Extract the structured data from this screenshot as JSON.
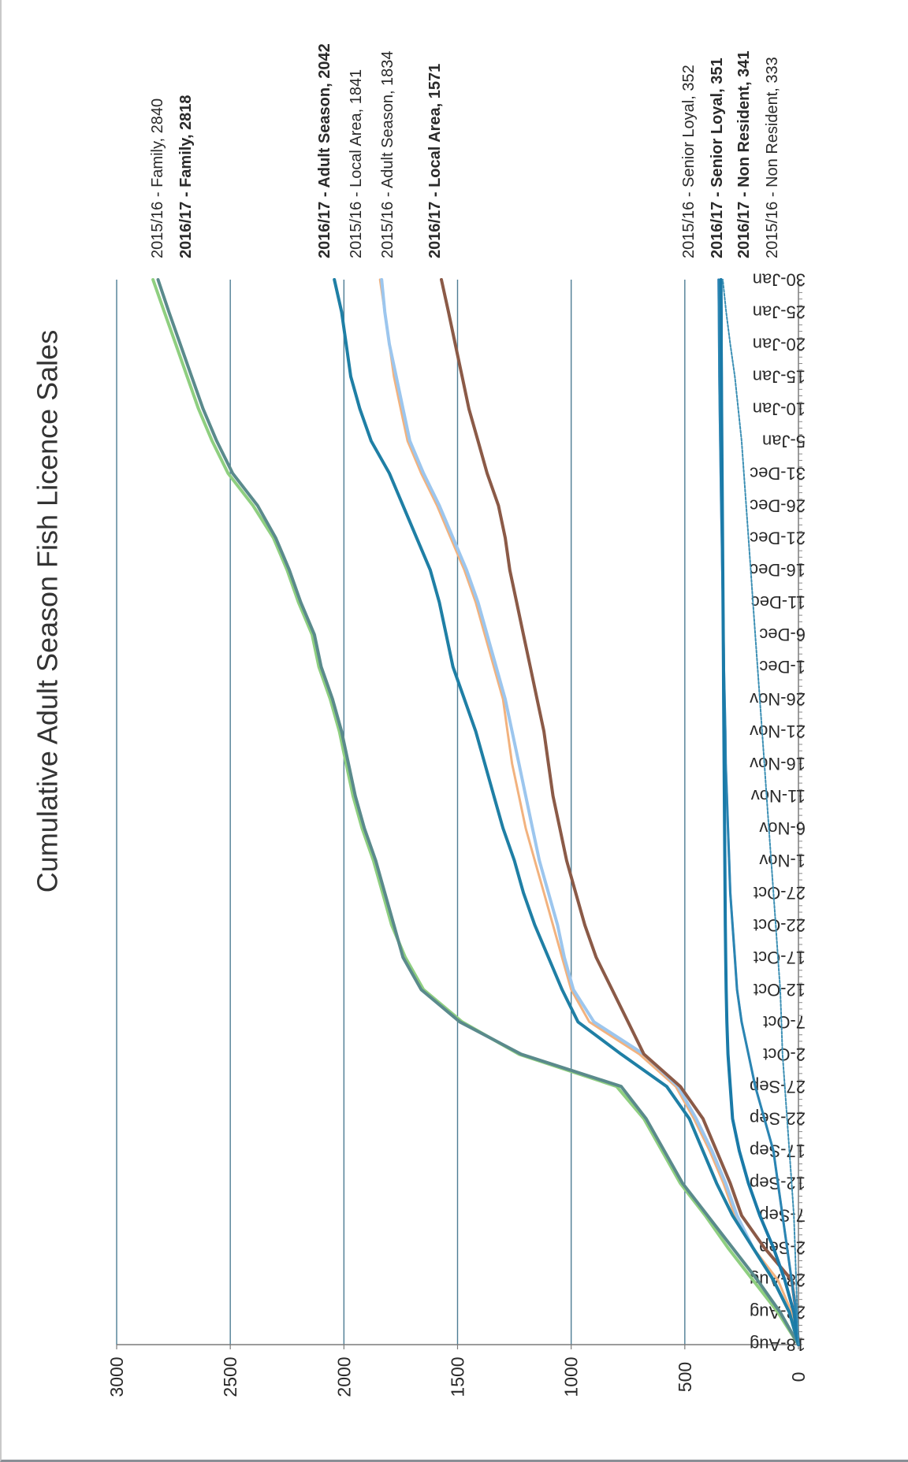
{
  "chart_data": {
    "type": "line",
    "title": "Cumulative Adult Season Fish Licence Sales",
    "xlabel": "",
    "ylabel": "",
    "ylim": [
      0,
      3000
    ],
    "yticks": [
      "0",
      "500",
      "1000",
      "1500",
      "2000",
      "2500",
      "3000"
    ],
    "xticks": [
      "18-Aug",
      "23-Aug",
      "28-Aug",
      "2-Sep",
      "7-Sep",
      "12-Sep",
      "17-Sep",
      "22-Sep",
      "27-Sep",
      "2-Oct",
      "7-Oct",
      "12-Oct",
      "17-Oct",
      "22-Oct",
      "27-Oct",
      "1-Nov",
      "6-Nov",
      "11-Nov",
      "16-Nov",
      "21-Nov",
      "26-Nov",
      "1-Dec",
      "6-Dec",
      "11-Dec",
      "16-Dec",
      "21-Dec",
      "26-Dec",
      "31-Dec",
      "5-Jan",
      "10-Jan",
      "15-Jan",
      "20-Jan",
      "25-Jan",
      "30-Jan"
    ],
    "grid": "horizontal",
    "orientation": "rotated-90-clockwise",
    "x": [
      "18-Aug",
      "23-Aug",
      "28-Aug",
      "2-Sep",
      "7-Sep",
      "12-Sep",
      "17-Sep",
      "22-Sep",
      "27-Sep",
      "2-Oct",
      "7-Oct",
      "12-Oct",
      "17-Oct",
      "22-Oct",
      "27-Oct",
      "1-Nov",
      "6-Nov",
      "11-Nov",
      "16-Nov",
      "21-Nov",
      "26-Nov",
      "1-Dec",
      "6-Dec",
      "11-Dec",
      "16-Dec",
      "21-Dec",
      "26-Dec",
      "31-Dec",
      "5-Jan",
      "10-Jan",
      "15-Jan",
      "20-Jan",
      "25-Jan",
      "30-Jan"
    ],
    "series": [
      {
        "name": "2015/16 - Family, 2840",
        "bold": false,
        "color": "#8fcf80",
        "width": 4,
        "dash": "",
        "values": [
          0,
          90,
          200,
          310,
          410,
          520,
          600,
          680,
          800,
          1230,
          1480,
          1650,
          1730,
          1790,
          1830,
          1870,
          1920,
          1960,
          1990,
          2020,
          2060,
          2110,
          2140,
          2200,
          2250,
          2310,
          2400,
          2510,
          2580,
          2640,
          2690,
          2740,
          2790,
          2840
        ]
      },
      {
        "name": "2016/17 - Family, 2818",
        "bold": true,
        "color": "#5a8a8c",
        "width": 4,
        "dash": "",
        "values": [
          0,
          80,
          180,
          290,
          400,
          510,
          590,
          670,
          780,
          1220,
          1490,
          1660,
          1740,
          1780,
          1820,
          1860,
          1910,
          1950,
          1980,
          2010,
          2050,
          2100,
          2130,
          2190,
          2240,
          2300,
          2380,
          2490,
          2560,
          2620,
          2670,
          2720,
          2770,
          2818
        ]
      },
      {
        "name": "2015/16 - Local Area, 1841",
        "bold": false,
        "color": "#f2b27e",
        "width": 3,
        "dash": "",
        "values": [
          0,
          30,
          90,
          200,
          280,
          330,
          390,
          460,
          540,
          700,
          920,
          1000,
          1040,
          1080,
          1120,
          1160,
          1200,
          1230,
          1260,
          1280,
          1300,
          1340,
          1380,
          1420,
          1470,
          1530,
          1590,
          1660,
          1720,
          1750,
          1780,
          1800,
          1820,
          1841
        ]
      },
      {
        "name": "2015/16 - Adult Season, 1834",
        "bold": false,
        "color": "#9cc6ee",
        "width": 4,
        "dash": "",
        "values": [
          0,
          40,
          110,
          200,
          270,
          320,
          380,
          450,
          530,
          680,
          900,
          990,
          1030,
          1060,
          1100,
          1140,
          1170,
          1200,
          1230,
          1260,
          1290,
          1330,
          1370,
          1410,
          1460,
          1520,
          1580,
          1650,
          1710,
          1740,
          1770,
          1800,
          1820,
          1834
        ]
      },
      {
        "name": "2016/17 - Adult Season, 2042",
        "bold": true,
        "color": "#1f7fa5",
        "width": 4,
        "dash": "",
        "values": [
          0,
          40,
          110,
          200,
          290,
          360,
          420,
          480,
          580,
          780,
          970,
          1040,
          1100,
          1160,
          1210,
          1250,
          1300,
          1340,
          1380,
          1420,
          1470,
          1520,
          1550,
          1580,
          1620,
          1680,
          1740,
          1800,
          1880,
          1930,
          1970,
          1990,
          2010,
          2042
        ]
      },
      {
        "name": "2016/17 - Local Area, 1571",
        "bold": true,
        "color": "#8b5a47",
        "width": 4,
        "dash": "",
        "values": [
          0,
          10,
          30,
          150,
          250,
          300,
          360,
          420,
          520,
          680,
          750,
          820,
          890,
          940,
          980,
          1020,
          1050,
          1080,
          1100,
          1120,
          1150,
          1180,
          1210,
          1240,
          1270,
          1290,
          1320,
          1370,
          1410,
          1450,
          1480,
          1510,
          1540,
          1571
        ]
      },
      {
        "name": "2015/16 - Senior Loyal, 352",
        "bold": false,
        "color": "#a9b4e4",
        "width": 3,
        "dash": "",
        "values": [
          0,
          10,
          30,
          50,
          70,
          90,
          110,
          150,
          190,
          220,
          250,
          270,
          280,
          290,
          300,
          305,
          310,
          315,
          320,
          322,
          325,
          328,
          330,
          332,
          335,
          337,
          340,
          342,
          344,
          346,
          348,
          349,
          350,
          352
        ]
      },
      {
        "name": "2016/17 - Senior Loyal, 351",
        "bold": true,
        "color": "#2a85b2",
        "width": 3,
        "dash": "",
        "values": [
          0,
          10,
          30,
          50,
          70,
          90,
          110,
          150,
          190,
          220,
          250,
          270,
          280,
          290,
          300,
          305,
          310,
          315,
          320,
          322,
          325,
          328,
          330,
          332,
          335,
          337,
          340,
          342,
          344,
          346,
          348,
          349,
          350,
          351
        ]
      },
      {
        "name": "2016/17 - Non Resident, 341",
        "bold": true,
        "color": "#1a7aa8",
        "width": 4,
        "dash": "",
        "values": [
          0,
          20,
          60,
          110,
          170,
          220,
          260,
          290,
          300,
          310,
          315,
          318,
          320,
          322,
          323,
          324,
          325,
          326,
          327,
          328,
          329,
          330,
          331,
          332,
          333,
          334,
          335,
          336,
          337,
          338,
          339,
          340,
          340,
          341
        ]
      },
      {
        "name": "2015/16 - Non Resident, 333",
        "bold": false,
        "color": "#3b8fb4",
        "width": 2,
        "dash": "3,2",
        "values": [
          0,
          5,
          10,
          15,
          20,
          30,
          40,
          50,
          60,
          70,
          75,
          80,
          90,
          100,
          110,
          120,
          130,
          140,
          150,
          160,
          170,
          180,
          190,
          200,
          210,
          220,
          230,
          240,
          250,
          265,
          280,
          300,
          318,
          333
        ]
      }
    ]
  }
}
